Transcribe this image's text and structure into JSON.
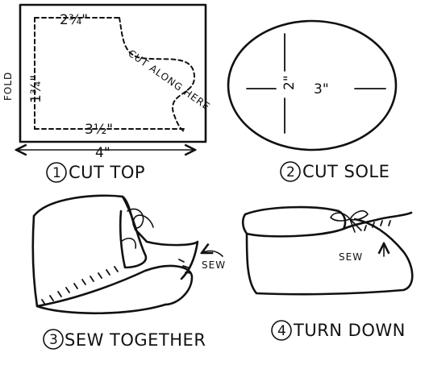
{
  "steps": [
    {
      "number": "1",
      "label": "CUT TOP"
    },
    {
      "number": "2",
      "label": "CUT SOLE"
    },
    {
      "number": "3",
      "label": "SEW TOGETHER"
    },
    {
      "number": "4",
      "label": "TURN DOWN"
    }
  ],
  "pattern_top": {
    "fold_label": "FOLD",
    "top_width": "2¾\"",
    "height": "1¾\"",
    "bottom_width": "3½\"",
    "overall_width": "4\"",
    "cut_label": "CUT ALONG HERE"
  },
  "pattern_sole": {
    "width": "3\"",
    "height": "2\""
  },
  "sew_labels": {
    "step3": "SEW",
    "step4": "SEW"
  }
}
